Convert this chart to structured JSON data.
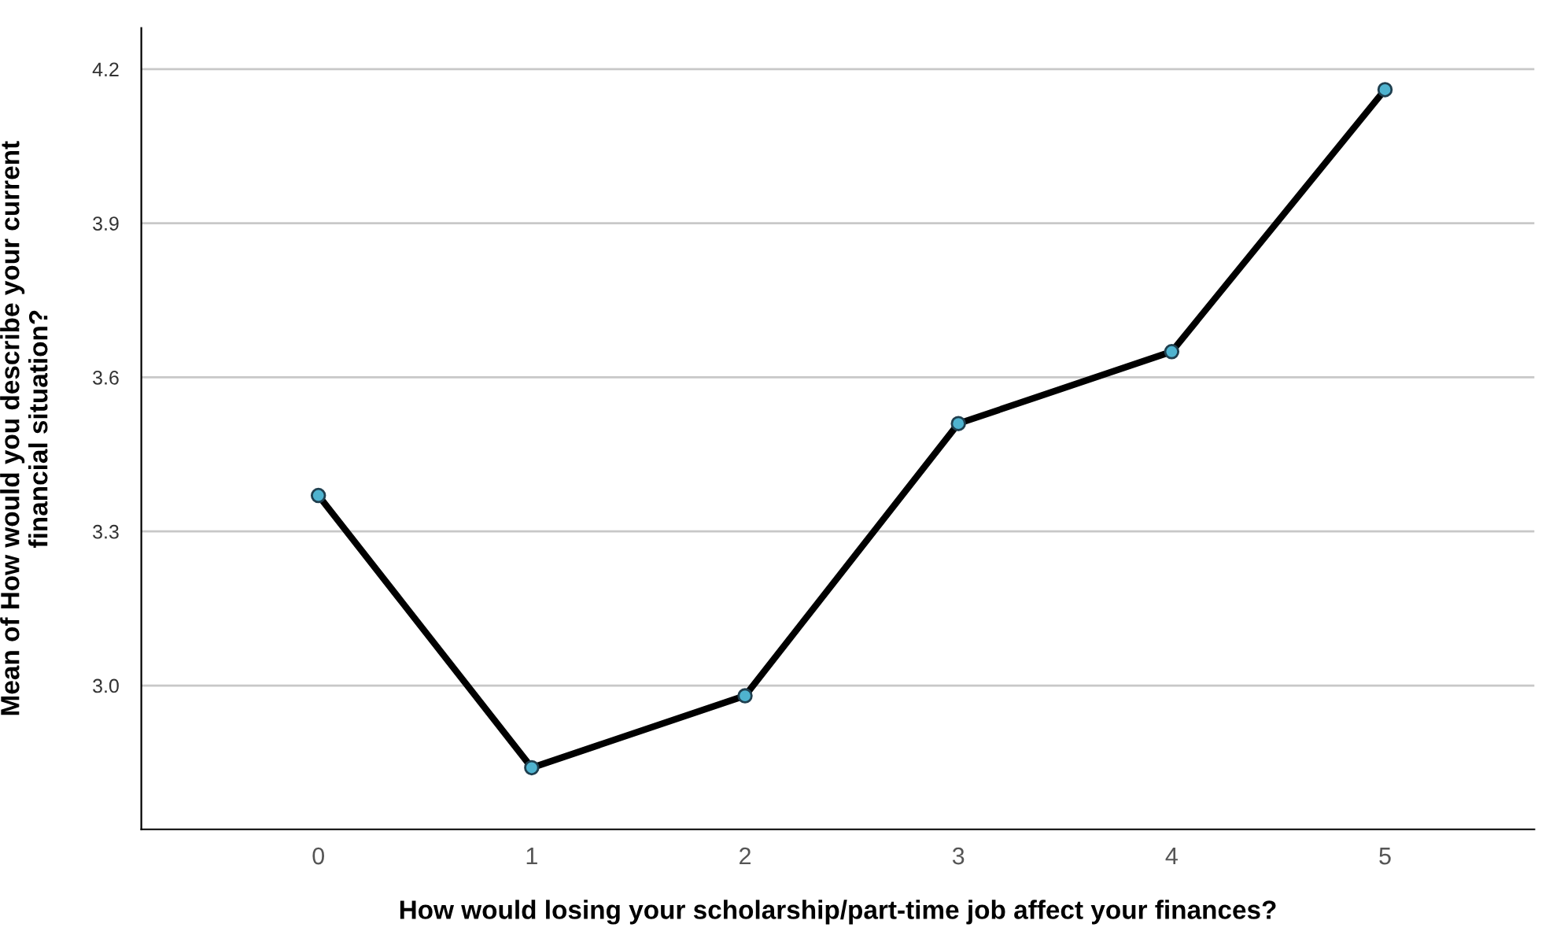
{
  "chart_data": {
    "type": "line",
    "xlabel": "How would losing your scholarship/part-time job affect your finances?",
    "ylabel": "Mean of How would you describe your current\nfinancial situation?",
    "categories": [
      "0",
      "1",
      "2",
      "3",
      "4",
      "5"
    ],
    "series": [
      {
        "color": "#000000",
        "values": [
          3.37,
          2.84,
          2.98,
          3.51,
          3.65,
          4.16
        ]
      }
    ],
    "ylim": [
      2.72,
      4.28
    ],
    "yticks": [
      {
        "value": 3.0,
        "label": "3.0"
      },
      3.3,
      3.6,
      3.9,
      4.2
    ],
    "grid": "y",
    "marker": "circle",
    "line_style": "solid"
  }
}
